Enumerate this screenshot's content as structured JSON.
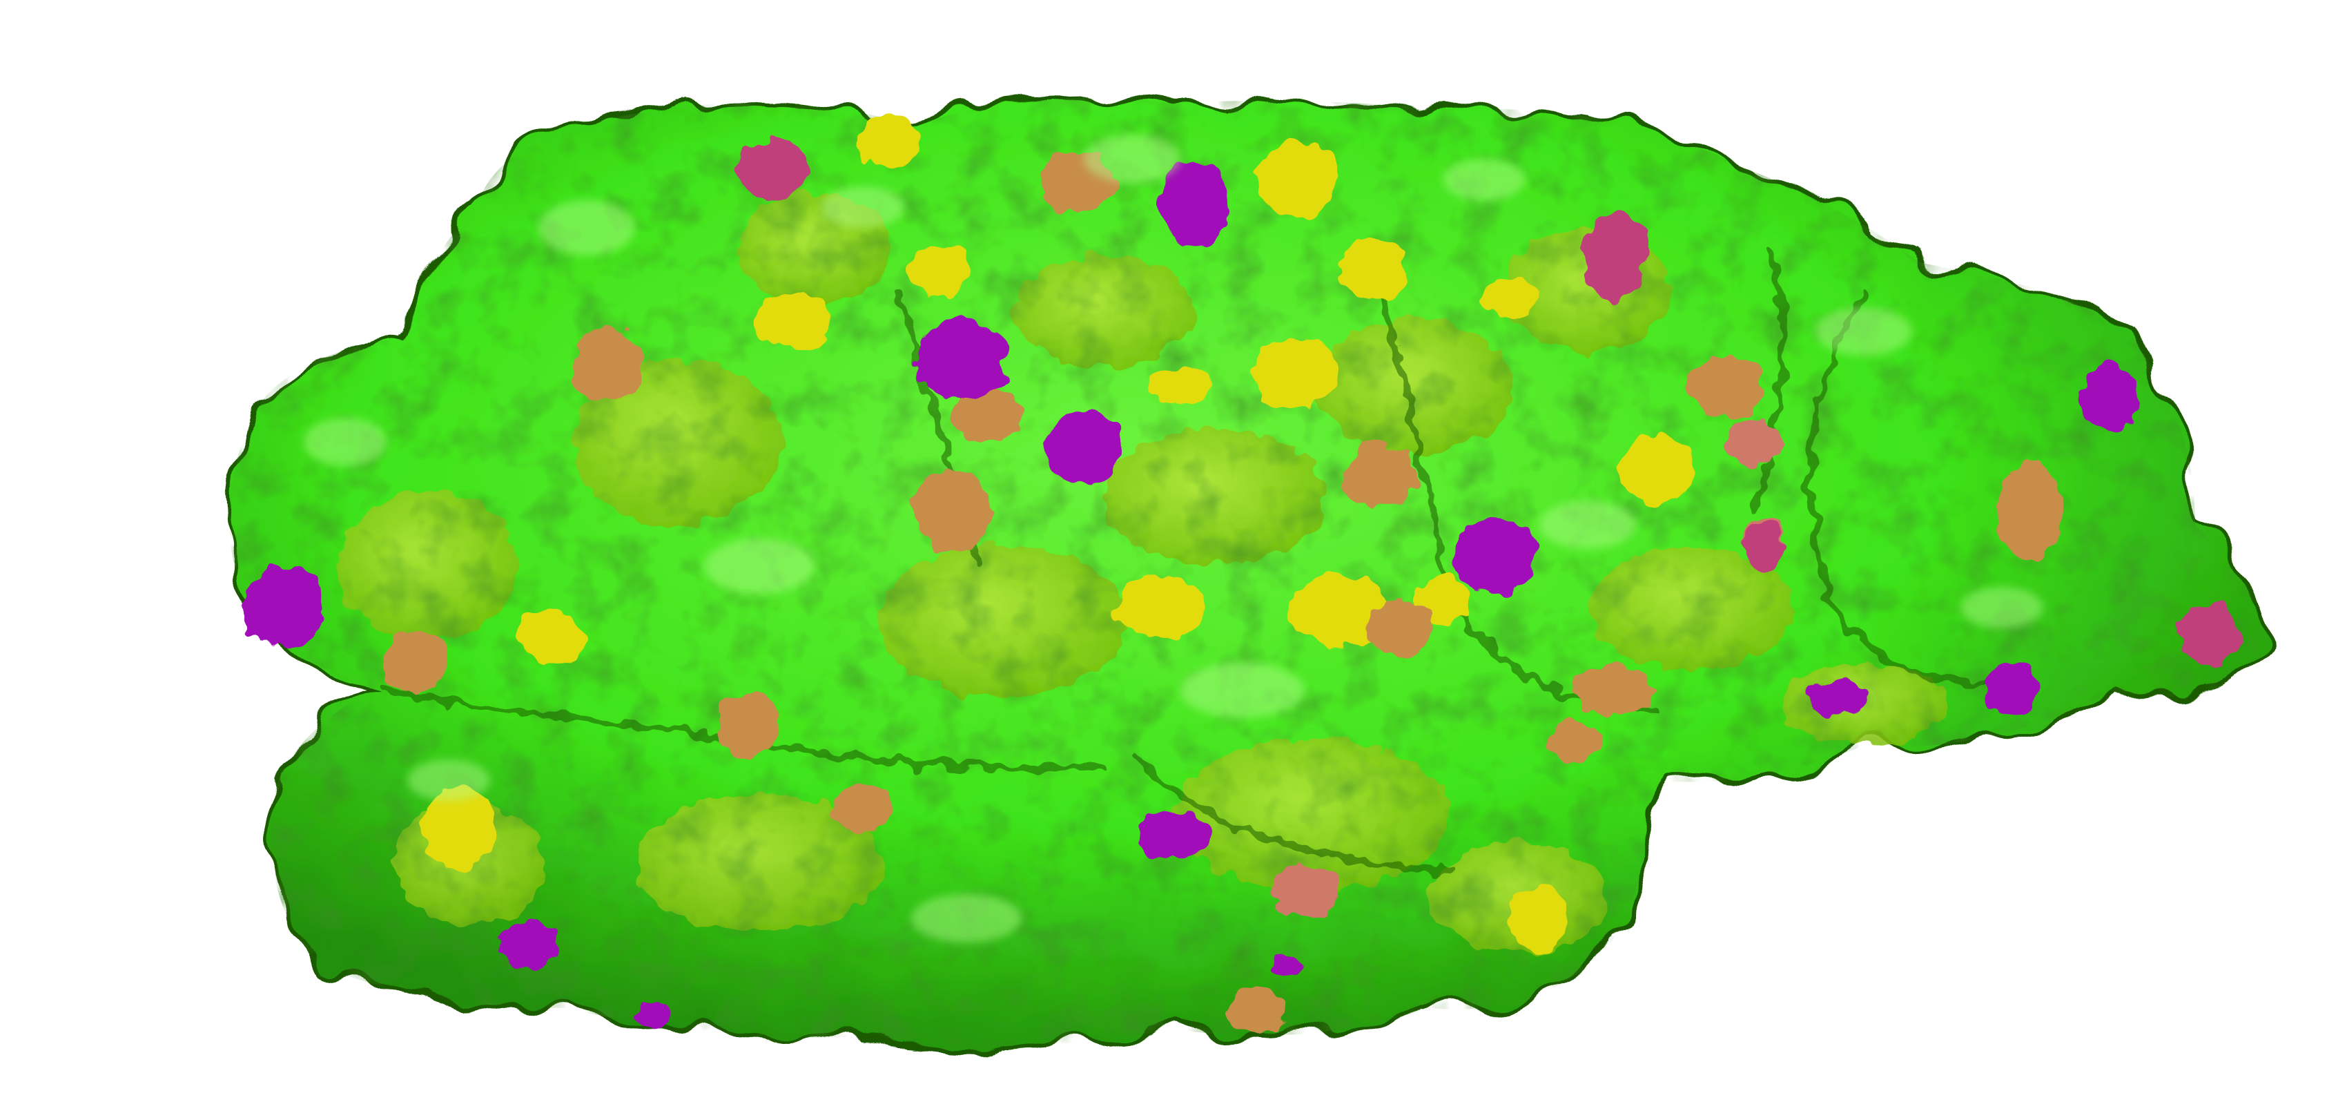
{
  "image": {
    "subject": "protein-molecular-surface",
    "background": "#ffffff",
    "palette": {
      "green": "#3ee31a",
      "lime": "#8ed412",
      "yellow_green": "#c4d50c",
      "yellow": "#e2dc0c",
      "tan": "#c88e48",
      "salmon": "#cf7a68",
      "magenta": "#a10bb8",
      "pink_magenta": "#c0407c",
      "shadow": "#1f6a08",
      "highlight": "#b6ff8e"
    }
  }
}
